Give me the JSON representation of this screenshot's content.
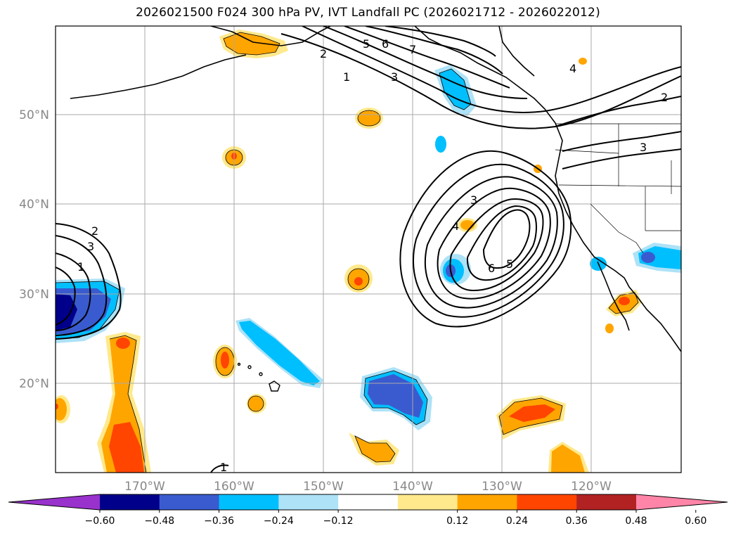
{
  "title": "2026021500 F024 300 hPa PV, IVT Landfall PC (2026021712 - 2026022012)",
  "map": {
    "lat_labels": [
      "50°N",
      "40°N",
      "30°N",
      "20°N"
    ],
    "lon_labels": [
      "170°W",
      "160°W",
      "150°W",
      "140°W",
      "130°W",
      "120°W"
    ],
    "gridlines": true,
    "contour_labels": [
      {
        "id": "c-nw-1",
        "text": "1"
      },
      {
        "id": "c-nw-2",
        "text": "2"
      },
      {
        "id": "c-nw-5",
        "text": "5"
      },
      {
        "id": "c-nw-6",
        "text": "6"
      },
      {
        "id": "c-nw-7",
        "text": "7"
      },
      {
        "id": "c-nw-3",
        "text": "3"
      },
      {
        "id": "c-ne-4",
        "text": "4"
      },
      {
        "id": "c-ne-2",
        "text": "2"
      },
      {
        "id": "c-ne-3",
        "text": "3"
      },
      {
        "id": "c-low-3",
        "text": "3"
      },
      {
        "id": "c-low-4",
        "text": "4"
      },
      {
        "id": "c-low-6",
        "text": "6"
      },
      {
        "id": "c-low-5",
        "text": "5"
      },
      {
        "id": "c-w-1",
        "text": "1"
      },
      {
        "id": "c-w-2",
        "text": "2"
      },
      {
        "id": "c-w-3",
        "text": "3"
      },
      {
        "id": "c-s-1",
        "text": "1"
      }
    ]
  },
  "colorbar": {
    "ticks": [
      "−0.60",
      "−0.48",
      "−0.36",
      "−0.24",
      "−0.12",
      "0.12",
      "0.24",
      "0.36",
      "0.48",
      "0.60"
    ],
    "colors": [
      "#9932cc",
      "#00008b",
      "#3a5bcf",
      "#00bfff",
      "#ade2f7",
      "#ffffff",
      "#ffe98c",
      "#ffa500",
      "#ff4500",
      "#b22222",
      "#ff85a8"
    ],
    "extend": "both"
  }
}
